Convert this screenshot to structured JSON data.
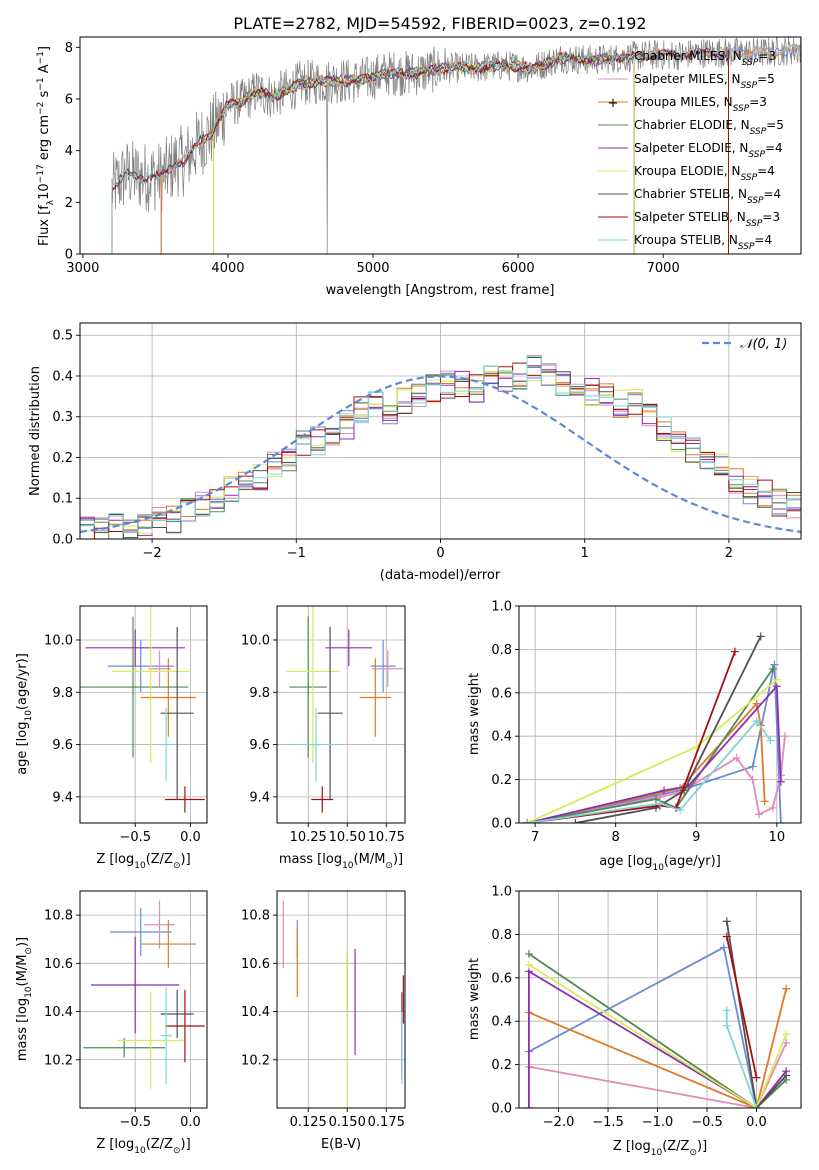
{
  "title": "PLATE=2782, MJD=54592, FIBERID=0023, z=0.192",
  "colors": {
    "Chabrier MILES": "#6a8bd6",
    "Salpeter MILES": "#e589b8",
    "Kroupa MILES": "#e07a25",
    "Chabrier ELODIE": "#4f8a55",
    "Salpeter ELODIE": "#8e2fb0",
    "Kroupa ELODIE": "#d6ea5a",
    "Chabrier STELIB": "#505050",
    "Salpeter STELIB": "#a80e0e",
    "Kroupa STELIB": "#7fd4d8",
    "data": "#808080",
    "normal": "#5b8bd6",
    "grid": "#b0b0b0"
  },
  "chart_data": [
    {
      "id": "spectrum",
      "type": "line",
      "xlabel": "wavelength [Angstrom, rest frame]",
      "ylabel": "Flux [f",
      "ylabel_sub": "λ",
      "ylabel_mid": "10",
      "ylabel_sup1": "−17",
      "ylabel_mid2": " erg cm",
      "ylabel_sup2": "−2",
      "ylabel_mid3": " s",
      "ylabel_sup3": "−1",
      "ylabel_mid4": " A",
      "ylabel_sup4": "−1",
      "ylabel_end": "]",
      "xlim": [
        2980,
        7950
      ],
      "ylim": [
        0,
        8.4
      ],
      "xticks": [
        "3000",
        "4000",
        "5000",
        "6000",
        "7000"
      ],
      "xtick_values": [
        3000,
        4000,
        5000,
        6000,
        7000
      ],
      "yticks": [
        "0",
        "2",
        "4",
        "6",
        "8"
      ],
      "ytick_values": [
        0,
        2,
        4,
        6,
        8
      ],
      "grid": false,
      "legend_position": "top-right",
      "continuum": {
        "x": [
          3200,
          3300,
          3400,
          3500,
          3550,
          3650,
          3700,
          3800,
          3900,
          4000,
          4100,
          4200,
          4300,
          4400,
          4500,
          4700,
          4900,
          5100,
          5300,
          5500,
          5700,
          5900,
          6100,
          6300,
          6500,
          6700,
          6900,
          7100,
          7300,
          7500,
          7700,
          7900
        ],
        "y": [
          2.5,
          3.1,
          3.0,
          3.0,
          3.0,
          3.6,
          3.6,
          4.3,
          4.8,
          5.8,
          5.9,
          6.3,
          6.1,
          6.3,
          6.6,
          6.7,
          6.7,
          7.0,
          7.0,
          7.2,
          7.2,
          7.3,
          7.2,
          7.6,
          7.5,
          7.6,
          7.7,
          7.7,
          7.8,
          7.8,
          7.8,
          7.9
        ]
      },
      "series": [
        {
          "name": "Chabrier MILES",
          "subscript": "SSP",
          "n": "3",
          "start": 3540,
          "end": 7950
        },
        {
          "name": "Salpeter MILES",
          "subscript": "SSP",
          "n": "5",
          "start": 3540,
          "end": 7950
        },
        {
          "name": "Kroupa MILES",
          "subscript": "SSP",
          "n": "3",
          "start": 3540,
          "end": 7950
        },
        {
          "name": "Chabrier ELODIE",
          "subscript": "SSP",
          "n": "5",
          "start": 3900,
          "end": 6800
        },
        {
          "name": "Salpeter ELODIE",
          "subscript": "SSP",
          "n": "4",
          "start": 3900,
          "end": 6800
        },
        {
          "name": "Kroupa ELODIE",
          "subscript": "SSP",
          "n": "4",
          "start": 3900,
          "end": 6800
        },
        {
          "name": "Chabrier STELIB",
          "subscript": "SSP",
          "n": "4",
          "start": 3200,
          "end": 7450
        },
        {
          "name": "Salpeter STELIB",
          "subscript": "SSP",
          "n": "3",
          "start": 3200,
          "end": 7450
        },
        {
          "name": "Kroupa STELIB",
          "subscript": "SSP",
          "n": "4",
          "start": 3200,
          "end": 7950
        }
      ]
    },
    {
      "id": "residuals",
      "type": "histogram",
      "xlabel": "(data-model)/error",
      "ylabel": "Normed distribution",
      "xlim": [
        -2.5,
        2.5
      ],
      "ylim": [
        0,
        0.53
      ],
      "xticks": [
        "−2",
        "−1",
        "0",
        "1",
        "2"
      ],
      "xtick_values": [
        -2,
        -1,
        0,
        1,
        2
      ],
      "yticks": [
        "0.0",
        "0.1",
        "0.2",
        "0.3",
        "0.4",
        "0.5"
      ],
      "ytick_values": [
        0,
        0.1,
        0.2,
        0.3,
        0.4,
        0.5
      ],
      "grid": true,
      "legend_position": "top-right",
      "normal_curve_label": "𝒩(0, 1)",
      "bin_width": 0.1,
      "bin_start": -2.5,
      "base_heights": [
        0.02,
        0.025,
        0.03,
        0.03,
        0.035,
        0.045,
        0.05,
        0.07,
        0.09,
        0.1,
        0.12,
        0.14,
        0.15,
        0.18,
        0.2,
        0.23,
        0.24,
        0.26,
        0.28,
        0.32,
        0.33,
        0.31,
        0.34,
        0.36,
        0.37,
        0.38,
        0.38,
        0.37,
        0.4,
        0.39,
        0.4,
        0.42,
        0.41,
        0.38,
        0.37,
        0.36,
        0.35,
        0.33,
        0.34,
        0.31,
        0.27,
        0.24,
        0.22,
        0.2,
        0.18,
        0.14,
        0.12,
        0.11,
        0.09,
        0.08,
        0.06,
        0.05,
        0.05,
        0.045,
        0.04
      ]
    },
    {
      "id": "age-vs-Z",
      "type": "errorbar",
      "xlabel": "Z [log",
      "xlabel_sub": "10",
      "xlabel_tail": "(Z/Z",
      "xlabel_sub2": "⊙",
      "xlabel_end": ")]",
      "ylabel": "age  [log",
      "ylabel_sub": "10",
      "ylabel_tail": "(age/yr)]",
      "xlim": [
        -1.0,
        0.15
      ],
      "ylim": [
        9.3,
        10.13
      ],
      "xticks": [
        "−0.5",
        "0.0"
      ],
      "xtick_values": [
        -0.5,
        0.0
      ],
      "yticks": [
        "9.4",
        "9.6",
        "9.8",
        "10.0"
      ],
      "ytick_values": [
        9.4,
        9.6,
        9.8,
        10.0
      ],
      "points": [
        {
          "series": "Chabrier MILES",
          "x": -0.45,
          "y": 9.9,
          "xerr": 0.3,
          "yerr": 0.1
        },
        {
          "series": "Salpeter MILES",
          "x": -0.28,
          "y": 9.89,
          "xerr": 0.1,
          "yerr": 0.07
        },
        {
          "series": "Kroupa MILES",
          "x": -0.2,
          "y": 9.78,
          "xerr": 0.25,
          "yerr": 0.15
        },
        {
          "series": "Chabrier ELODIE",
          "x": -0.52,
          "y": 9.82,
          "xerr": 0.5,
          "yerr": 0.27
        },
        {
          "series": "Salpeter ELODIE",
          "x": -0.5,
          "y": 9.97,
          "xerr": 0.45,
          "yerr": 0.07
        },
        {
          "series": "Kroupa ELODIE",
          "x": -0.36,
          "y": 9.88,
          "xerr": 0.35,
          "yerr": 0.35
        },
        {
          "series": "Chabrier STELIB",
          "x": -0.12,
          "y": 9.72,
          "xerr": 0.15,
          "yerr": 0.33
        },
        {
          "series": "Salpeter STELIB",
          "x": -0.05,
          "y": 9.39,
          "xerr": 0.18,
          "yerr": 0.05
        },
        {
          "series": "Kroupa STELIB",
          "x": -0.22,
          "y": 9.6,
          "xerr": 0.08,
          "yerr": 0.14
        }
      ]
    },
    {
      "id": "age-vs-mass",
      "type": "errorbar",
      "xlabel": "mass [log",
      "xlabel_sub": "10",
      "xlabel_tail": "(M/M",
      "xlabel_sub2": "⊙",
      "xlabel_end": ")]",
      "xlim": [
        10.05,
        10.87
      ],
      "ylim": [
        9.3,
        10.13
      ],
      "xticks": [
        "10.25",
        "10.50",
        "10.75"
      ],
      "xtick_values": [
        10.25,
        10.5,
        10.75
      ],
      "yticks": [
        "9.4",
        "9.6",
        "9.8",
        "10.0"
      ],
      "ytick_values": [
        9.4,
        9.6,
        9.8,
        10.0
      ],
      "points": [
        {
          "series": "Chabrier MILES",
          "x": 10.73,
          "y": 9.9,
          "xerr": 0.08,
          "yerr": 0.1
        },
        {
          "series": "Salpeter MILES",
          "x": 10.76,
          "y": 9.89,
          "xerr": 0.1,
          "yerr": 0.07
        },
        {
          "series": "Kroupa MILES",
          "x": 10.68,
          "y": 9.78,
          "xerr": 0.1,
          "yerr": 0.15
        },
        {
          "series": "Chabrier ELODIE",
          "x": 10.25,
          "y": 9.82,
          "xerr": 0.12,
          "yerr": 0.27
        },
        {
          "series": "Salpeter ELODIE",
          "x": 10.51,
          "y": 9.97,
          "xerr": 0.15,
          "yerr": 0.07
        },
        {
          "series": "Kroupa ELODIE",
          "x": 10.28,
          "y": 9.88,
          "xerr": 0.17,
          "yerr": 0.35
        },
        {
          "series": "Chabrier STELIB",
          "x": 10.39,
          "y": 9.72,
          "xerr": 0.08,
          "yerr": 0.33
        },
        {
          "series": "Salpeter STELIB",
          "x": 10.34,
          "y": 9.39,
          "xerr": 0.07,
          "yerr": 0.05
        },
        {
          "series": "Kroupa STELIB",
          "x": 10.3,
          "y": 9.6,
          "xerr": 0.16,
          "yerr": 0.14
        }
      ]
    },
    {
      "id": "mass-weight-vs-age",
      "type": "line",
      "xlabel": "age  [log",
      "xlabel_sub": "10",
      "xlabel_tail": "(age/yr)]",
      "ylabel": "mass weight",
      "xlim": [
        6.8,
        10.3
      ],
      "ylim": [
        0,
        1.0
      ],
      "xticks": [
        "7",
        "8",
        "9",
        "10"
      ],
      "xtick_values": [
        7,
        8,
        9,
        10
      ],
      "yticks": [
        "0.0",
        "0.2",
        "0.4",
        "0.6",
        "0.8",
        "1.0"
      ],
      "ytick_values": [
        0,
        0.2,
        0.4,
        0.6,
        0.8,
        1.0
      ],
      "grid": true,
      "series": [
        {
          "name": "Chabrier MILES",
          "x": [
            6.9,
            8.8,
            9.7,
            9.97,
            10.05
          ],
          "y": [
            0.0,
            0.15,
            0.26,
            0.73,
            0.0
          ]
        },
        {
          "name": "Salpeter MILES",
          "x": [
            6.9,
            8.55,
            8.8,
            9.5,
            9.7,
            9.78,
            9.95,
            10.05,
            10.1
          ],
          "y": [
            0.0,
            0.12,
            0.14,
            0.3,
            0.2,
            0.04,
            0.07,
            0.22,
            0.4
          ]
        },
        {
          "name": "Kroupa MILES",
          "x": [
            6.9,
            8.8,
            9.75,
            9.8,
            9.85
          ],
          "y": [
            0.0,
            0.16,
            0.55,
            0.45,
            0.1
          ]
        },
        {
          "name": "Chabrier ELODIE",
          "x": [
            6.9,
            8.5,
            8.75,
            9.95
          ],
          "y": [
            0.0,
            0.11,
            0.07,
            0.71
          ]
        },
        {
          "name": "Salpeter ELODIE",
          "x": [
            6.9,
            8.6,
            8.9,
            10.0,
            10.05
          ],
          "y": [
            0.0,
            0.15,
            0.17,
            0.63,
            0.19
          ]
        },
        {
          "name": "Kroupa ELODIE",
          "x": [
            6.9,
            9.0,
            10.0
          ],
          "y": [
            0.0,
            0.35,
            0.66
          ]
        },
        {
          "name": "Chabrier STELIB",
          "x": [
            7.5,
            8.5,
            8.85,
            9.8
          ],
          "y": [
            0.0,
            0.07,
            0.15,
            0.86
          ]
        },
        {
          "name": "Salpeter STELIB",
          "x": [
            6.9,
            8.55,
            8.75,
            9.48
          ],
          "y": [
            0.0,
            0.08,
            0.07,
            0.79
          ]
        },
        {
          "name": "Kroupa STELIB",
          "x": [
            6.9,
            8.55,
            8.8,
            9.75,
            9.92
          ],
          "y": [
            0.0,
            0.09,
            0.06,
            0.47,
            0.38
          ]
        }
      ]
    },
    {
      "id": "mass-vs-Z",
      "type": "errorbar",
      "xlabel": "Z [log",
      "xlabel_sub": "10",
      "xlabel_tail": "(Z/Z",
      "xlabel_sub2": "⊙",
      "xlabel_end": ")]",
      "ylabel": "mass [log",
      "ylabel_sub": "10",
      "ylabel_tail": "(M/M",
      "ylabel_sub2": "⊙",
      "ylabel_end": ")]",
      "xlim": [
        -1.0,
        0.15
      ],
      "ylim": [
        10.0,
        10.9
      ],
      "xticks": [
        "−0.5",
        "0.0"
      ],
      "xtick_values": [
        -0.5,
        0.0
      ],
      "yticks": [
        "10.2",
        "10.4",
        "10.6",
        "10.8"
      ],
      "ytick_values": [
        10.2,
        10.4,
        10.6,
        10.8
      ],
      "points": [
        {
          "series": "Chabrier MILES",
          "x": -0.45,
          "y": 10.73,
          "xerr": 0.28,
          "yerr": 0.1
        },
        {
          "series": "Salpeter MILES",
          "x": -0.28,
          "y": 10.76,
          "xerr": 0.14,
          "yerr": 0.1
        },
        {
          "series": "Kroupa MILES",
          "x": -0.2,
          "y": 10.68,
          "xerr": 0.25,
          "yerr": 0.1
        },
        {
          "series": "Chabrier ELODIE",
          "x": -0.6,
          "y": 10.25,
          "xerr": 0.37,
          "yerr": 0.04
        },
        {
          "series": "Salpeter ELODIE",
          "x": -0.5,
          "y": 10.51,
          "xerr": 0.4,
          "yerr": 0.2
        },
        {
          "series": "Kroupa ELODIE",
          "x": -0.36,
          "y": 10.28,
          "xerr": 0.3,
          "yerr": 0.2
        },
        {
          "series": "Chabrier STELIB",
          "x": -0.12,
          "y": 10.39,
          "xerr": 0.15,
          "yerr": 0.1
        },
        {
          "series": "Salpeter STELIB",
          "x": -0.05,
          "y": 10.34,
          "xerr": 0.18,
          "yerr": 0.15
        },
        {
          "series": "Kroupa STELIB",
          "x": -0.22,
          "y": 10.3,
          "xerr": 0.05,
          "yerr": 0.2
        }
      ]
    },
    {
      "id": "mass-vs-ebv",
      "type": "errorbar",
      "xlabel": "E(B-V)",
      "xlim": [
        0.105,
        0.187
      ],
      "ylim": [
        10.0,
        10.9
      ],
      "xticks": [
        "0.125",
        "0.150",
        "0.175"
      ],
      "xtick_values": [
        0.125,
        0.15,
        0.175
      ],
      "yticks": [
        "10.2",
        "10.4",
        "10.6",
        "10.8"
      ],
      "ytick_values": [
        10.2,
        10.4,
        10.6,
        10.8
      ],
      "points": [
        {
          "series": "Chabrier MILES",
          "x": 0.118,
          "y": 10.7,
          "xerr": 0,
          "yerr": 0.08
        },
        {
          "series": "Salpeter MILES",
          "x": 0.109,
          "y": 10.72,
          "xerr": 0,
          "yerr": 0.14
        },
        {
          "series": "Kroupa MILES",
          "x": 0.118,
          "y": 10.6,
          "xerr": 0,
          "yerr": 0.14
        },
        {
          "series": "Chabrier ELODIE",
          "x": 0.15,
          "y": 10.52,
          "xerr": 0,
          "yerr": 0.12
        },
        {
          "series": "Salpeter ELODIE",
          "x": 0.155,
          "y": 10.44,
          "xerr": 0,
          "yerr": 0.22
        },
        {
          "series": "Kroupa ELODIE",
          "x": 0.15,
          "y": 10.3,
          "xerr": 0,
          "yerr": 0.35
        },
        {
          "series": "Chabrier STELIB",
          "x": 0.185,
          "y": 10.3,
          "xerr": 0,
          "yerr": 0.18
        },
        {
          "series": "Salpeter STELIB",
          "x": 0.186,
          "y": 10.45,
          "xerr": 0,
          "yerr": 0.1
        },
        {
          "series": "Kroupa STELIB",
          "x": 0.185,
          "y": 10.25,
          "xerr": 0,
          "yerr": 0.15
        }
      ]
    },
    {
      "id": "mass-weight-vs-Z",
      "type": "line",
      "xlabel": "Z [log",
      "xlabel_sub": "10",
      "xlabel_tail": "(Z/Z",
      "xlabel_sub2": "⊙",
      "xlabel_end": ")]",
      "ylabel": "mass weight",
      "xlim": [
        -2.4,
        0.45
      ],
      "ylim": [
        0,
        1.0
      ],
      "xticks": [
        "−2.0",
        "−1.5",
        "−1.0",
        "−0.5",
        "0.0"
      ],
      "xtick_values": [
        -2.0,
        -1.5,
        -1.0,
        -0.5,
        0.0
      ],
      "yticks": [
        "0.0",
        "0.2",
        "0.4",
        "0.6",
        "0.8",
        "1.0"
      ],
      "ytick_values": [
        0,
        0.2,
        0.4,
        0.6,
        0.8,
        1.0
      ],
      "grid": true,
      "series": [
        {
          "name": "Chabrier MILES",
          "x": [
            -2.3,
            -0.33,
            0.0
          ],
          "y": [
            0.26,
            0.74,
            0.0
          ]
        },
        {
          "name": "Salpeter MILES",
          "x": [
            -2.3,
            0.0,
            0.3
          ],
          "y": [
            0.19,
            0.0,
            0.3
          ]
        },
        {
          "name": "Kroupa MILES",
          "x": [
            -2.3,
            0.0,
            0.3
          ],
          "y": [
            0.44,
            0.0,
            0.55
          ]
        },
        {
          "name": "Chabrier ELODIE",
          "x": [
            -2.3,
            0.0,
            0.3
          ],
          "y": [
            0.71,
            0.0,
            0.13
          ]
        },
        {
          "name": "Salpeter ELODIE",
          "x": [
            -2.3,
            -2.3,
            0.0,
            0.3
          ],
          "y": [
            0.0,
            0.63,
            0.0,
            0.17
          ]
        },
        {
          "name": "Kroupa ELODIE",
          "x": [
            -2.3,
            0.0,
            0.3
          ],
          "y": [
            0.66,
            0.0,
            0.34
          ]
        },
        {
          "name": "Chabrier STELIB",
          "x": [
            -0.3,
            0.0,
            0.3
          ],
          "y": [
            0.86,
            0.0,
            0.15
          ]
        },
        {
          "name": "Salpeter STELIB",
          "x": [
            -0.3,
            0.0
          ],
          "y": [
            0.79,
            0.14
          ]
        },
        {
          "name": "Kroupa STELIB",
          "x": [
            -0.3,
            -0.3,
            0.0
          ],
          "y": [
            0.45,
            0.38,
            0.0
          ]
        }
      ]
    }
  ]
}
